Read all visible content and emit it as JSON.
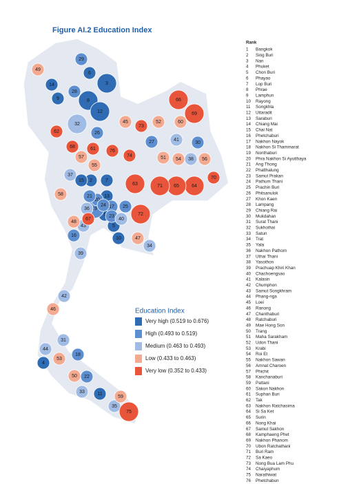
{
  "title": "Figure AI.2  Education Index",
  "legend": {
    "title": "Education Index",
    "items": [
      {
        "label": "Very high (0.519 to 0.676)",
        "color": "#2f6cb3"
      },
      {
        "label": "High (0.493 to 0.519)",
        "color": "#5d8fd0"
      },
      {
        "label": "Medium (0.463 to 0.493)",
        "color": "#a0bce4"
      },
      {
        "label": "Low (0.433 to 0.463)",
        "color": "#f3aa90"
      },
      {
        "label": "Very low (0.352 to 0.433)",
        "color": "#e9553b"
      }
    ]
  },
  "ranking_header": "Rank",
  "ranking": [
    {
      "rank": 1,
      "province": "Bangkok",
      "level": 0
    },
    {
      "rank": 2,
      "province": "Sing Buri",
      "level": 0
    },
    {
      "rank": 3,
      "province": "Nan",
      "level": 0
    },
    {
      "rank": 4,
      "province": "Phuket",
      "level": 0
    },
    {
      "rank": 5,
      "province": "Chon Buri",
      "level": 0
    },
    {
      "rank": 6,
      "province": "Phayao",
      "level": 0
    },
    {
      "rank": 7,
      "province": "Lop Buri",
      "level": 0
    },
    {
      "rank": 8,
      "province": "Phrae",
      "level": 0
    },
    {
      "rank": 9,
      "province": "Lamphun",
      "level": 0
    },
    {
      "rank": 10,
      "province": "Rayong",
      "level": 0
    },
    {
      "rank": 11,
      "province": "Songkhla",
      "level": 0
    },
    {
      "rank": 12,
      "province": "Uttaradit",
      "level": 0
    },
    {
      "rank": 13,
      "province": "Saraburi",
      "level": 0
    },
    {
      "rank": 14,
      "province": "Chiang Mai",
      "level": 0
    },
    {
      "rank": 15,
      "province": "Chai Nat",
      "level": 0
    },
    {
      "rank": 16,
      "province": "Phetchaburi",
      "level": 1
    },
    {
      "rank": 17,
      "province": "Nakhon Nayok",
      "level": 1
    },
    {
      "rank": 18,
      "province": "Nakhon Si Thammarat",
      "level": 1
    },
    {
      "rank": 19,
      "province": "Nonthaburi",
      "level": 1
    },
    {
      "rank": 20,
      "province": "Phra Nakhon Si Ayutthaya",
      "level": 1
    },
    {
      "rank": 21,
      "province": "Ang Thong",
      "level": 1
    },
    {
      "rank": 22,
      "province": "Phatthalung",
      "level": 1
    },
    {
      "rank": 23,
      "province": "Samut Prakan",
      "level": 1
    },
    {
      "rank": 24,
      "province": "Pathum Thani",
      "level": 1
    },
    {
      "rank": 25,
      "province": "Prachin Buri",
      "level": 1
    },
    {
      "rank": 26,
      "province": "Phitsanulok",
      "level": 1
    },
    {
      "rank": 27,
      "province": "Khon Kaen",
      "level": 1
    },
    {
      "rank": 28,
      "province": "Lampang",
      "level": 1
    },
    {
      "rank": 29,
      "province": "Chiang Rai",
      "level": 1
    },
    {
      "rank": 30,
      "province": "Mukdahan",
      "level": 1
    },
    {
      "rank": 31,
      "province": "Surat Thani",
      "level": 2
    },
    {
      "rank": 32,
      "province": "Sukhothai",
      "level": 2
    },
    {
      "rank": 33,
      "province": "Satun",
      "level": 2
    },
    {
      "rank": 34,
      "province": "Trat",
      "level": 2
    },
    {
      "rank": 35,
      "province": "Yala",
      "level": 2
    },
    {
      "rank": 36,
      "province": "Nakhon Pathom",
      "level": 2
    },
    {
      "rank": 37,
      "province": "Uthai Thani",
      "level": 2
    },
    {
      "rank": 38,
      "province": "Yasothon",
      "level": 2
    },
    {
      "rank": 39,
      "province": "Prachuap Khiri Khan",
      "level": 2
    },
    {
      "rank": 40,
      "province": "Chachoengsao",
      "level": 2
    },
    {
      "rank": 41,
      "province": "Kalasin",
      "level": 2
    },
    {
      "rank": 42,
      "province": "Chumphon",
      "level": 2
    },
    {
      "rank": 43,
      "province": "Samut Songkhram",
      "level": 2
    },
    {
      "rank": 44,
      "province": "Phang-nga",
      "level": 2
    },
    {
      "rank": 45,
      "province": "Loei",
      "level": 3
    },
    {
      "rank": 46,
      "province": "Ranong",
      "level": 3
    },
    {
      "rank": 47,
      "province": "Chanthaburi",
      "level": 3
    },
    {
      "rank": 48,
      "province": "Ratchaburi",
      "level": 3
    },
    {
      "rank": 49,
      "province": "Mae Hong Son",
      "level": 3
    },
    {
      "rank": 50,
      "province": "Trang",
      "level": 3
    },
    {
      "rank": 51,
      "province": "Maha Sarakham",
      "level": 3
    },
    {
      "rank": 52,
      "province": "Udon Thani",
      "level": 3
    },
    {
      "rank": 53,
      "province": "Krabi",
      "level": 3
    },
    {
      "rank": 54,
      "province": "Roi Et",
      "level": 3
    },
    {
      "rank": 55,
      "province": "Nakhon Sawan",
      "level": 3
    },
    {
      "rank": 56,
      "province": "Amnat Charoen",
      "level": 3
    },
    {
      "rank": 57,
      "province": "Phichit",
      "level": 3
    },
    {
      "rank": 58,
      "province": "Kanchanaburi",
      "level": 3
    },
    {
      "rank": 59,
      "province": "Pattani",
      "level": 3
    },
    {
      "rank": 60,
      "province": "Sakon Nakhon",
      "level": 3
    },
    {
      "rank": 61,
      "province": "Suphan Buri",
      "level": 4
    },
    {
      "rank": 62,
      "province": "Tak",
      "level": 4
    },
    {
      "rank": 63,
      "province": "Nakhon Ratchasima",
      "level": 4
    },
    {
      "rank": 64,
      "province": "Si Sa Ket",
      "level": 4
    },
    {
      "rank": 65,
      "province": "Surin",
      "level": 4
    },
    {
      "rank": 66,
      "province": "Nong Khai",
      "level": 4
    },
    {
      "rank": 67,
      "province": "Samut Sakhon",
      "level": 4
    },
    {
      "rank": 68,
      "province": "Kamphaeng Phet",
      "level": 4
    },
    {
      "rank": 69,
      "province": "Nakhon Phanom",
      "level": 4
    },
    {
      "rank": 70,
      "province": "Ubon Ratchathani",
      "level": 4
    },
    {
      "rank": 71,
      "province": "Buri Ram",
      "level": 4
    },
    {
      "rank": 72,
      "province": "Sa Kaeo",
      "level": 4
    },
    {
      "rank": 73,
      "province": "Nong Bua Lam Phu",
      "level": 4
    },
    {
      "rank": 74,
      "province": "Chaiyaphum",
      "level": 4
    },
    {
      "rank": 75,
      "province": "Narathiwat",
      "level": 4
    },
    {
      "rank": 76,
      "province": "Phetchabun",
      "level": 4
    }
  ]
}
